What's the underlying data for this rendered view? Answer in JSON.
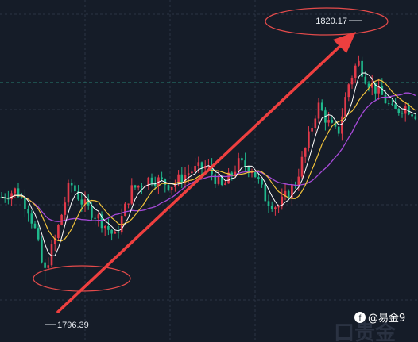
{
  "chart_data": {
    "type": "candlestick",
    "unit": "price",
    "x": [],
    "ylim": [
      1790,
      1826
    ],
    "grid": true,
    "annotations": {
      "high_label": "1820.17",
      "low_label": "1796.39",
      "high_value": 1820.17,
      "low_value": 1796.39,
      "reference_level": 1817.3
    }
  },
  "watermark": {
    "logo_text": "@易金9",
    "ghost_text": "口贵金"
  },
  "colors": {
    "background": "#151c28",
    "grid": "#2b3344",
    "up": "#e23a4a",
    "down": "#1fb98d",
    "ma_short": "#ffffff",
    "ma_mid": "#f0c23b",
    "ma_long": "#a64ad8",
    "arrow": "#ee3f3f",
    "ellipse": "#e44b4b",
    "reference": "#2fa38a"
  }
}
